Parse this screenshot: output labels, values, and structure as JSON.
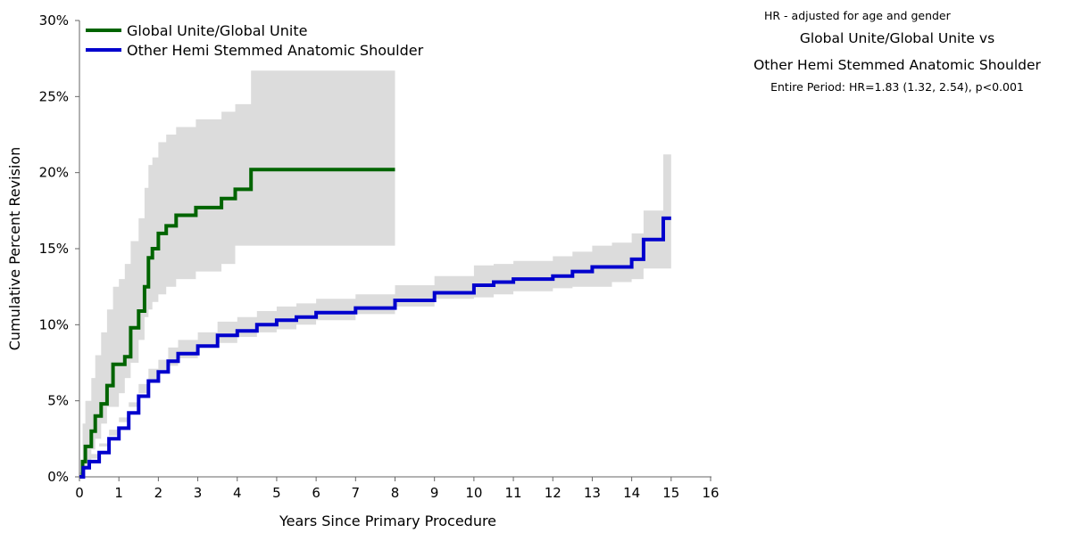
{
  "chart_data": {
    "type": "line",
    "title": "",
    "xlabel": "Years Since Primary Procedure",
    "ylabel": "Cumulative Percent Revision",
    "xlim": [
      0,
      16
    ],
    "ylim": [
      0,
      30
    ],
    "x_ticks": [
      0,
      1,
      2,
      3,
      4,
      5,
      6,
      7,
      8,
      9,
      10,
      11,
      12,
      13,
      14,
      15,
      16
    ],
    "y_ticks": [
      "0%",
      "5%",
      "10%",
      "15%",
      "20%",
      "25%",
      "30%"
    ],
    "y_tick_values": [
      0,
      5,
      10,
      15,
      20,
      25,
      30
    ],
    "grid": false,
    "legend_position": "top-left",
    "series": [
      {
        "name": "Global Unite/Global Unite",
        "color": "#006400",
        "x": [
          0,
          0.08,
          0.15,
          0.3,
          0.4,
          0.55,
          0.7,
          0.85,
          1.0,
          1.15,
          1.3,
          1.5,
          1.65,
          1.75,
          1.85,
          2.0,
          2.2,
          2.45,
          2.95,
          3.6,
          3.95,
          4.35,
          8.0
        ],
        "y": [
          0,
          1.0,
          2.0,
          3.0,
          4.0,
          4.8,
          6.0,
          7.4,
          7.4,
          7.9,
          9.8,
          10.9,
          12.5,
          14.4,
          15.0,
          16.0,
          16.5,
          17.2,
          17.7,
          18.3,
          18.9,
          20.2,
          20.2
        ],
        "lower": [
          0,
          0,
          0.4,
          1.0,
          1.8,
          2.5,
          3.5,
          4.6,
          4.6,
          5.5,
          6.5,
          7.5,
          9.0,
          10.5,
          11.0,
          11.5,
          12.0,
          12.5,
          13.0,
          13.5,
          14.0,
          15.2,
          15.2
        ],
        "upper": [
          0,
          3.5,
          5.0,
          6.5,
          8.0,
          9.5,
          11.0,
          12.5,
          13.0,
          14.0,
          15.5,
          17.0,
          19.0,
          20.5,
          21.0,
          22.0,
          22.5,
          23.0,
          23.5,
          24.0,
          24.5,
          26.7,
          26.7
        ]
      },
      {
        "name": "Other Hemi Stemmed Anatomic Shoulder",
        "color": "#0000CD",
        "x": [
          0,
          0.1,
          0.25,
          0.5,
          0.75,
          1.0,
          1.25,
          1.5,
          1.75,
          2.0,
          2.25,
          2.5,
          3.0,
          3.5,
          4.0,
          4.5,
          5.0,
          5.5,
          6.0,
          7.0,
          8.0,
          9.0,
          10.0,
          10.5,
          11.0,
          12.0,
          12.5,
          13.0,
          13.5,
          14.0,
          14.3,
          14.8,
          15.0
        ],
        "y": [
          0,
          0.6,
          1.0,
          1.6,
          2.5,
          3.2,
          4.2,
          5.3,
          6.3,
          6.9,
          7.6,
          8.1,
          8.6,
          9.3,
          9.6,
          10.0,
          10.3,
          10.5,
          10.8,
          11.1,
          11.6,
          12.1,
          12.6,
          12.8,
          13.0,
          13.2,
          13.5,
          13.8,
          13.8,
          14.3,
          15.6,
          17.0,
          17.0
        ],
        "lower": [
          0,
          0.3,
          0.7,
          1.2,
          2.0,
          2.7,
          3.6,
          4.6,
          5.5,
          6.2,
          6.8,
          7.3,
          7.8,
          8.5,
          8.8,
          9.2,
          9.5,
          9.7,
          10.0,
          10.3,
          10.7,
          11.2,
          11.7,
          11.8,
          12.0,
          12.2,
          12.4,
          12.5,
          12.5,
          12.8,
          13.0,
          13.7,
          13.7
        ],
        "upper": [
          0,
          1.0,
          1.5,
          2.2,
          3.1,
          3.9,
          4.9,
          6.1,
          7.1,
          7.7,
          8.5,
          9.0,
          9.5,
          10.2,
          10.5,
          10.9,
          11.2,
          11.4,
          11.7,
          12.0,
          12.6,
          13.2,
          13.9,
          14.0,
          14.2,
          14.5,
          14.8,
          15.2,
          15.4,
          16.0,
          17.5,
          21.2,
          21.2
        ]
      }
    ],
    "annotation": {
      "method": "HR - adjusted for age and gender",
      "comparison_line1": "Global Unite/Global Unite vs",
      "comparison_line2": "Other Hemi Stemmed Anatomic Shoulder",
      "statistic": "Entire Period: HR=1.83 (1.32, 2.54), p<0.001"
    }
  }
}
